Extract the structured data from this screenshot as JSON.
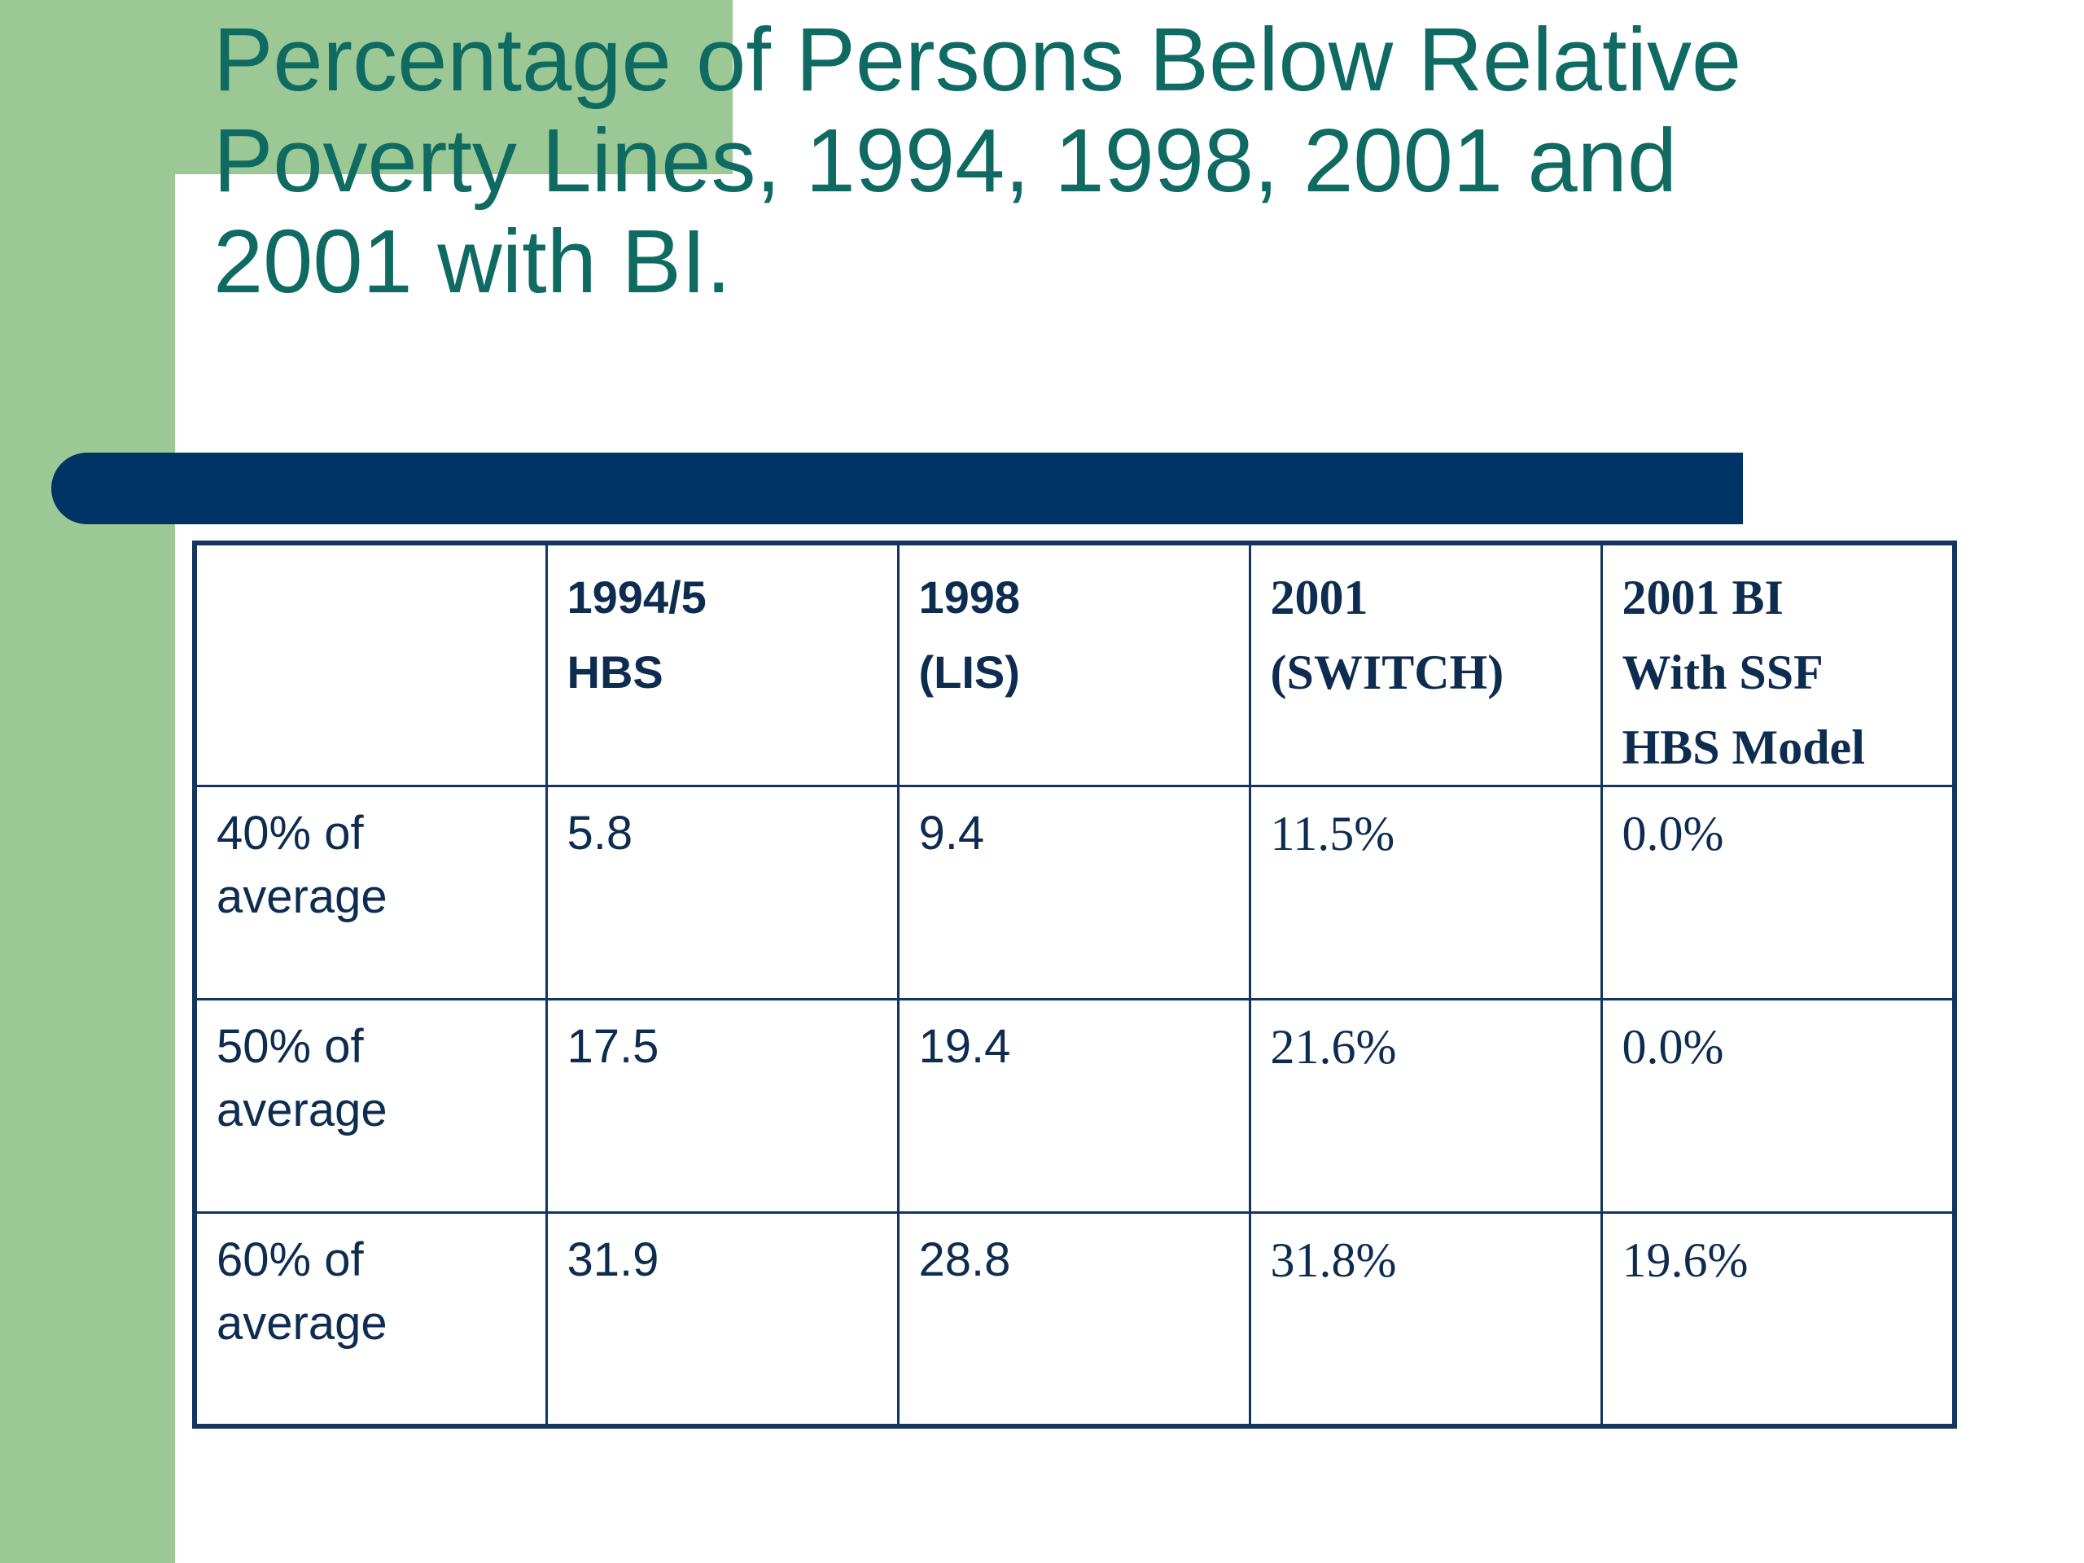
{
  "slide": {
    "title": "Percentage of Persons Below Relative Poverty Lines, 1994, 1998, 2001 and 2001 with BI."
  },
  "table": {
    "headers": [
      "",
      "1994/5\nHBS",
      "1998\n(LIS)",
      "2001\n(SWITCH)",
      "2001 BI\nWith SSF\nHBS Model"
    ],
    "rows": [
      {
        "label": "40% of\naverage",
        "values": [
          "5.8",
          "9.4",
          "11.5%",
          "0.0%"
        ]
      },
      {
        "label": "50% of\naverage",
        "values": [
          "17.5",
          "19.4",
          "21.6%",
          "0.0%"
        ]
      },
      {
        "label": "60% of\naverage",
        "values": [
          "31.9",
          "28.8",
          "31.8%",
          "19.6%"
        ]
      }
    ]
  },
  "colors": {
    "green_band": "#9bc894",
    "title_text": "#0f6a62",
    "title_bar": "#003366",
    "table_border": "#14365e",
    "table_text": "#0e2c50"
  }
}
